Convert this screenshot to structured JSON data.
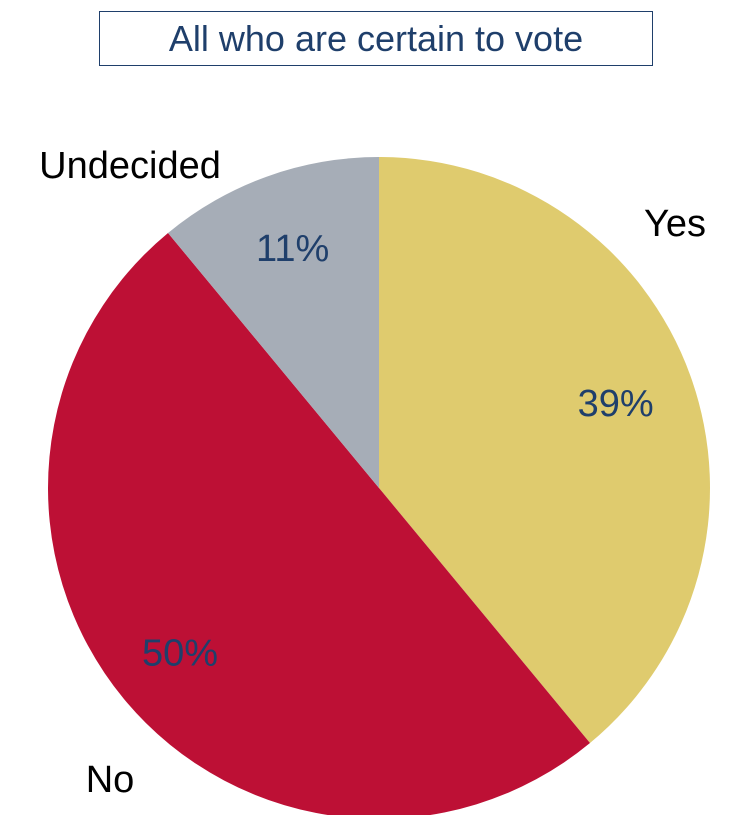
{
  "chart_data": {
    "type": "pie",
    "title": "All who are certain to vote",
    "slices": [
      {
        "label": "Yes",
        "value": 39,
        "value_label": "39%",
        "color": "#dfcb6e"
      },
      {
        "label": "No",
        "value": 50,
        "value_label": "50%",
        "color": "#bd1035"
      },
      {
        "label": "Undecided",
        "value": 11,
        "value_label": "11%",
        "color": "#a6adb7"
      }
    ],
    "value_label_color": "#1f3f6b",
    "start_angle": "12 o'clock",
    "direction": "clockwise"
  }
}
